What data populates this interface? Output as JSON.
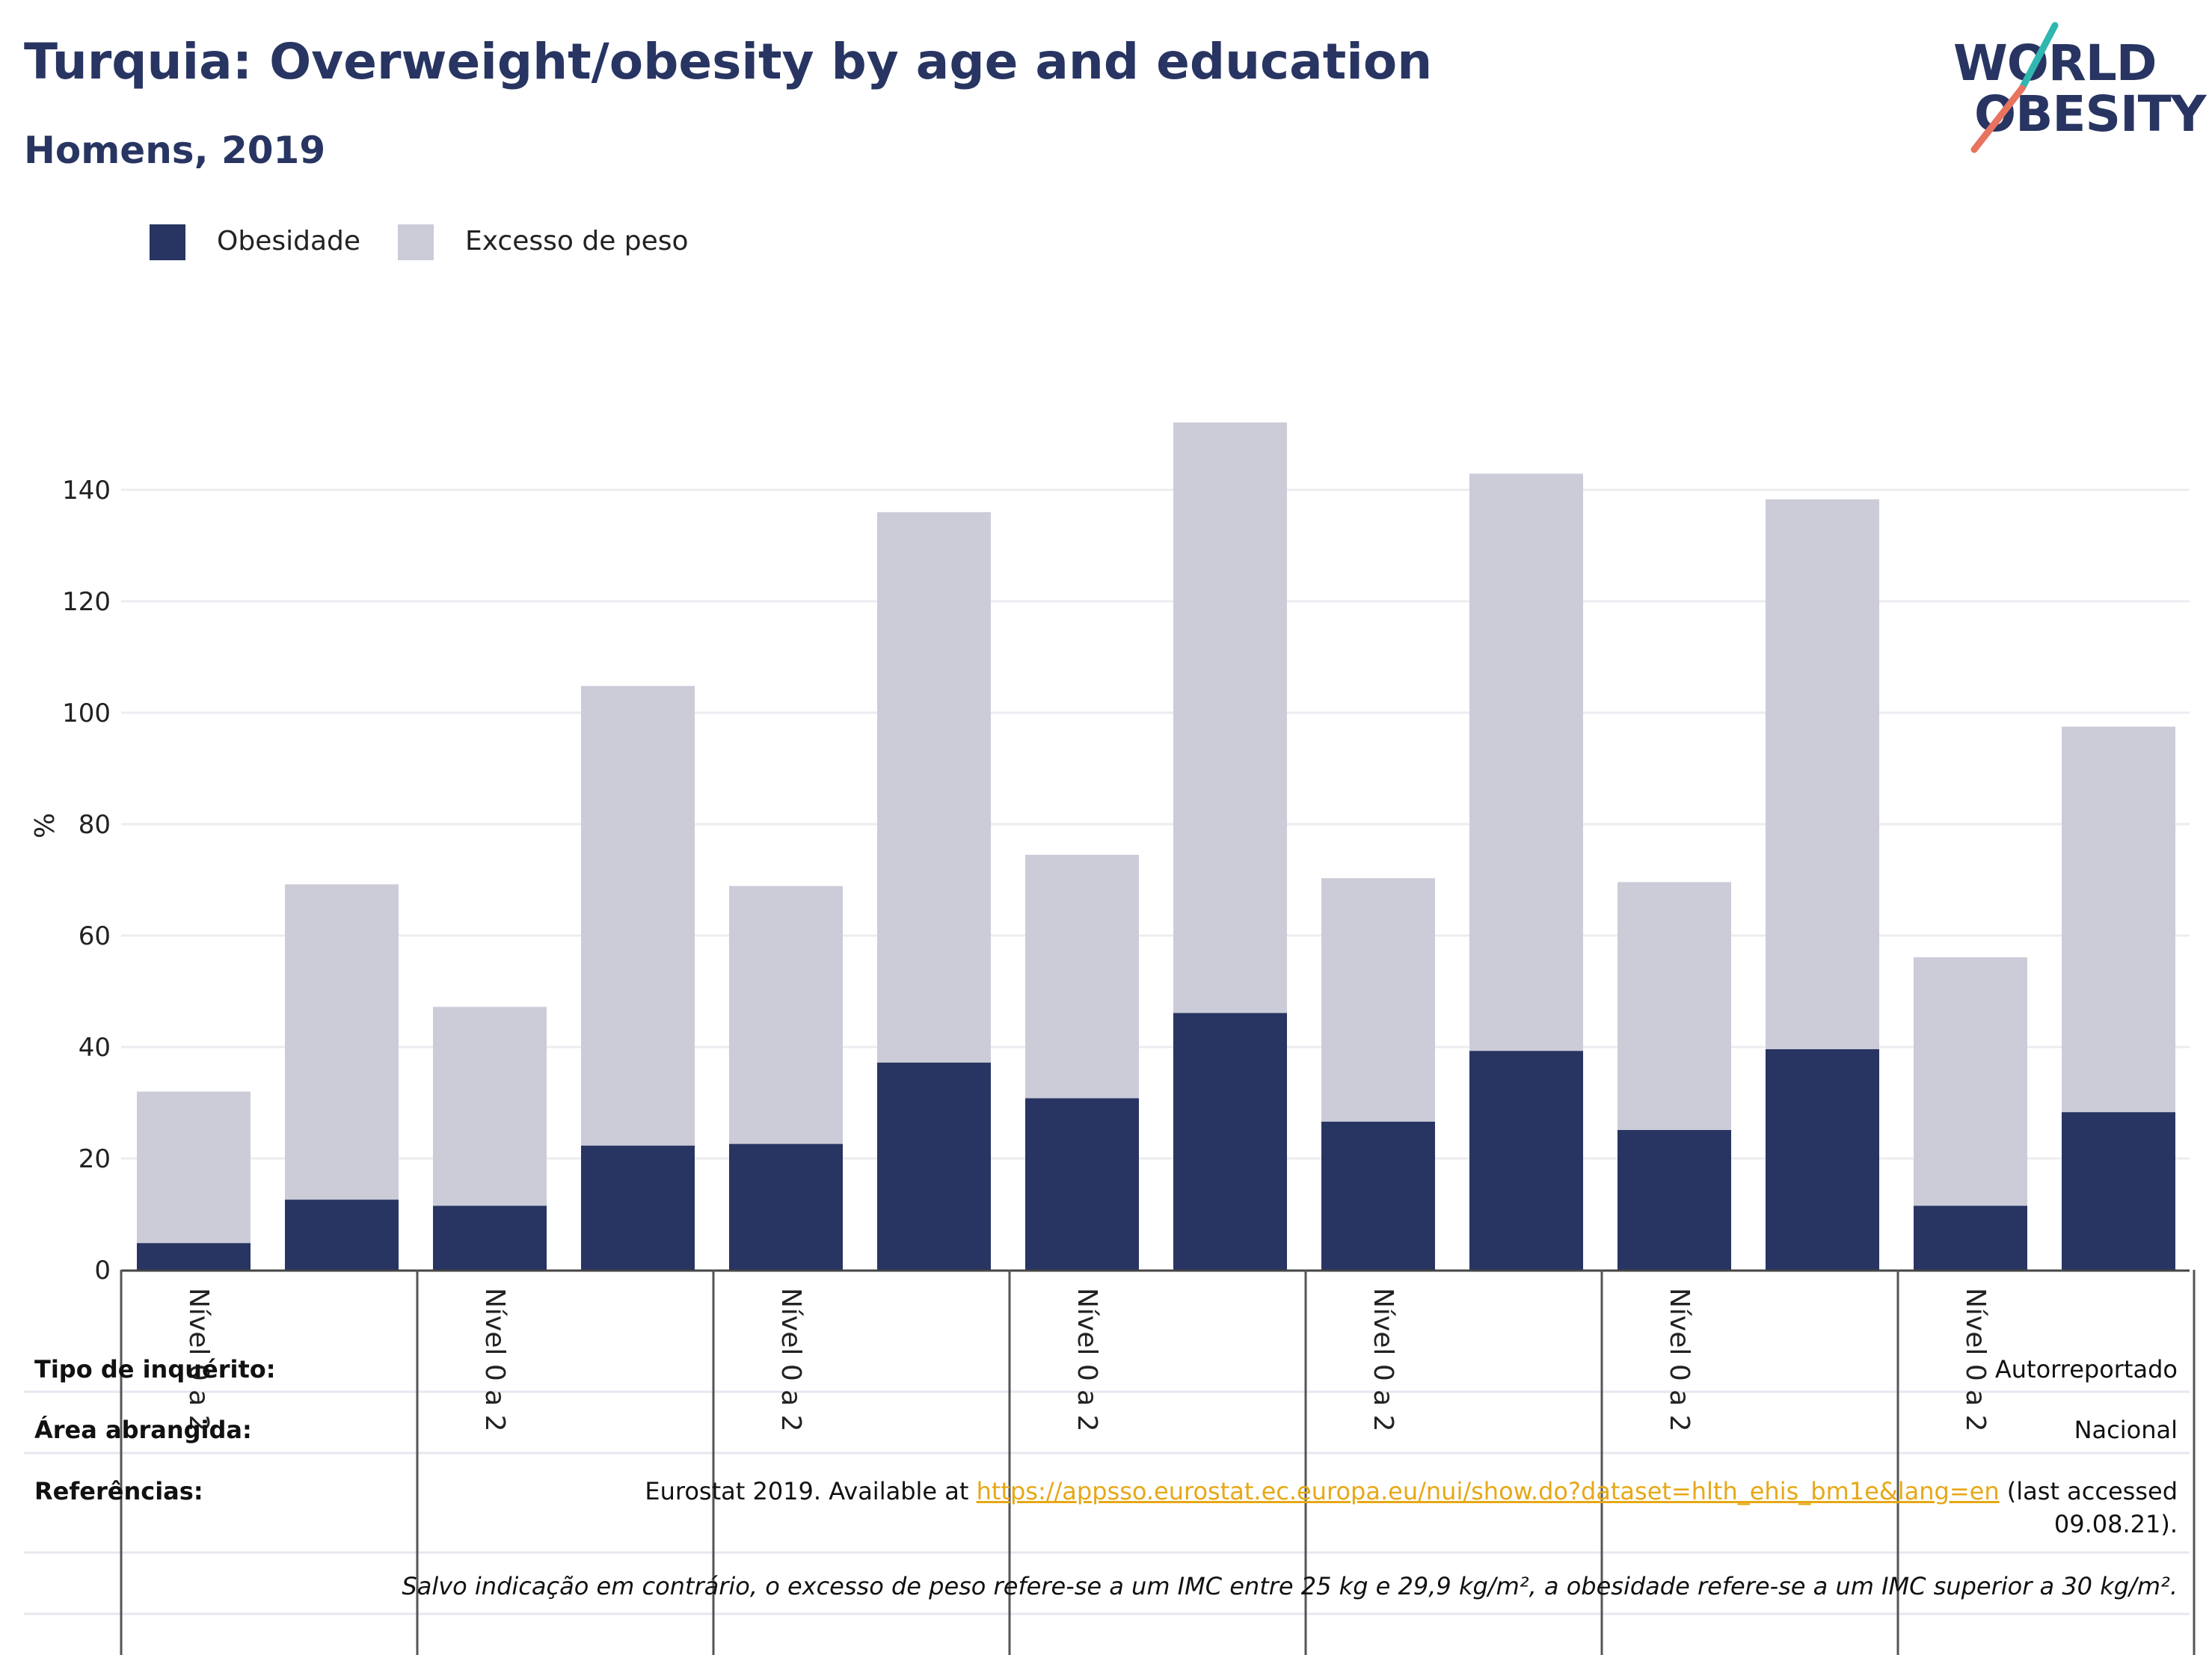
{
  "header": {
    "title": "Turquia: Overweight/obesity by age and education",
    "subtitle": "Homens, 2019"
  },
  "logo": {
    "line1": "WORLD",
    "line2": "OBESITY"
  },
  "legend": {
    "obesity": "Obesidade",
    "overweight": "Excesso de peso"
  },
  "colors": {
    "obesity": "#283562",
    "overweight": "#cbccd8",
    "accent_teal": "#2fb7b0",
    "accent_coral": "#e8735f",
    "link": "#e6a817"
  },
  "chart_data": {
    "type": "bar",
    "stacked": true,
    "ylabel": "%",
    "ylim": [
      0,
      155
    ],
    "yticks": [
      0,
      20,
      40,
      60,
      80,
      100,
      120,
      140
    ],
    "grid": true,
    "legend_position": "top-left",
    "group_labels": [
      "Nível 0 a 2",
      "Nível 0 a 2",
      "Nível 0 a 2",
      "Nível 0 a 2",
      "Nível 0 a 2",
      "Nível 0 a 2",
      "Nível 0 a 2"
    ],
    "series": [
      {
        "name": "Obesidade",
        "values": [
          4.8,
          12.6,
          11.5,
          22.3,
          22.6,
          37.2,
          30.8,
          46.1,
          26.6,
          39.3,
          25.1,
          39.6,
          11.5,
          28.3
        ]
      },
      {
        "name": "Excesso de peso",
        "values": [
          27.2,
          56.6,
          35.7,
          82.5,
          46.3,
          98.8,
          43.7,
          106.0,
          43.7,
          103.6,
          44.5,
          98.7,
          44.6,
          69.2
        ]
      }
    ]
  },
  "info": {
    "survey_label": "Tipo de inquérito:",
    "survey_value": "Autorreportado",
    "area_label": "Área abrangida:",
    "area_value": "Nacional",
    "refs_label": "Referências:",
    "refs_prefix": "Eurostat 2019. Available at ",
    "refs_link": "https://appsso.eurostat.ec.europa.eu/nui/show.do?dataset=hlth_ehis_bm1e&lang=en",
    "refs_suffix": " (last accessed",
    "refs_date": "09.08.21).",
    "note": "Salvo indicação em contrário, o excesso de peso refere-se a um IMC entre 25 kg e 29,9 kg/m², a obesidade refere-se a um IMC superior a 30 kg/m²."
  }
}
